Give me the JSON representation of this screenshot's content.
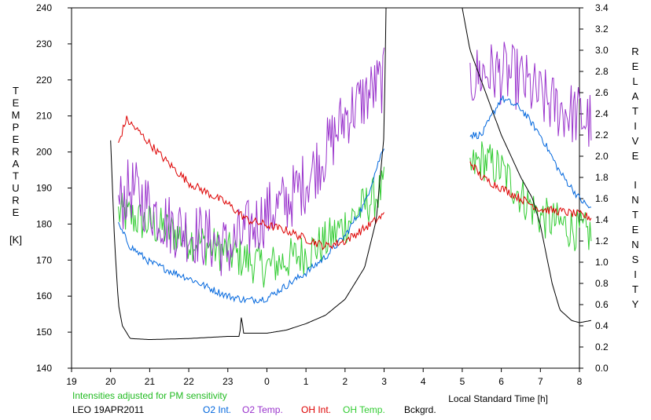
{
  "chart_data": {
    "type": "line",
    "title": "",
    "left_axis_label": "TEMPERATURE",
    "left_axis_unit": "[K]",
    "right_axis_label": "RELATIVE INTENSITY",
    "xlabel": "Local Standard Time [h]",
    "note": "Intensities adjusted for PM sensitivity",
    "station_date": "LEO 19APR2011",
    "xlim": [
      19,
      32
    ],
    "x_ticks": [
      19,
      20,
      21,
      22,
      23,
      24,
      25,
      26,
      27,
      28,
      29,
      30,
      31,
      32
    ],
    "x_tick_labels": [
      "19",
      "20",
      "21",
      "22",
      "23",
      "0",
      "1",
      "2",
      "3",
      "4",
      "5",
      "6",
      "7",
      "8"
    ],
    "ylim_left": [
      140,
      240
    ],
    "y_left_ticks": [
      "140",
      "150",
      "160",
      "170",
      "180",
      "190",
      "200",
      "210",
      "220",
      "230",
      "240"
    ],
    "ylim_right": [
      0.0,
      3.4
    ],
    "y_right_ticks": [
      "0.0",
      "0.2",
      "0.4",
      "0.6",
      "0.8",
      "1.0",
      "1.2",
      "1.4",
      "1.6",
      "1.8",
      "2.0",
      "2.2",
      "2.4",
      "2.6",
      "2.8",
      "3.0",
      "3.2",
      "3.4"
    ],
    "colors": {
      "o2_int": "#0066dd",
      "o2_temp": "#9933cc",
      "oh_int": "#dd0000",
      "oh_temp": "#33cc33",
      "bckgrd": "#000000",
      "note": "#22bb22"
    },
    "series": [
      {
        "name": "O2 Int.",
        "key": "o2_int",
        "axis": "right",
        "segments": [
          [
            [
              20.2,
              1.35
            ],
            [
              20.5,
              1.15
            ],
            [
              21.0,
              1.0
            ],
            [
              21.5,
              0.92
            ],
            [
              22.0,
              0.85
            ],
            [
              22.5,
              0.76
            ],
            [
              23.0,
              0.68
            ],
            [
              23.5,
              0.64
            ],
            [
              24.0,
              0.66
            ],
            [
              24.5,
              0.78
            ],
            [
              25.0,
              0.9
            ],
            [
              25.5,
              1.05
            ],
            [
              26.0,
              1.25
            ],
            [
              26.5,
              1.55
            ],
            [
              27.0,
              2.1
            ]
          ],
          [
            [
              29.2,
              2.2
            ],
            [
              29.5,
              2.2
            ],
            [
              30.0,
              2.55
            ],
            [
              30.5,
              2.45
            ],
            [
              31.0,
              2.2
            ],
            [
              31.5,
              1.85
            ],
            [
              32.0,
              1.6
            ],
            [
              32.3,
              1.5
            ]
          ]
        ]
      },
      {
        "name": "O2 Temp.",
        "key": "o2_temp",
        "axis": "left",
        "segments": [
          [
            [
              20.2,
              185
            ],
            [
              20.5,
              190
            ],
            [
              21.0,
              185
            ],
            [
              21.5,
              180
            ],
            [
              22.0,
              178
            ],
            [
              22.5,
              176
            ],
            [
              23.0,
              173
            ],
            [
              23.5,
              178
            ],
            [
              24.0,
              183
            ],
            [
              24.5,
              186
            ],
            [
              25.0,
              192
            ],
            [
              25.5,
              200
            ],
            [
              26.0,
              210
            ],
            [
              26.5,
              215
            ],
            [
              27.0,
              220
            ]
          ],
          [
            [
              29.2,
              220
            ],
            [
              29.5,
              222
            ],
            [
              30.0,
              222
            ],
            [
              30.5,
              220
            ],
            [
              31.0,
              215
            ],
            [
              31.5,
              212
            ],
            [
              32.0,
              210
            ],
            [
              32.3,
              208
            ]
          ]
        ]
      },
      {
        "name": "OH Int.",
        "key": "oh_int",
        "axis": "right",
        "segments": [
          [
            [
              20.2,
              2.12
            ],
            [
              20.4,
              2.35
            ],
            [
              20.8,
              2.2
            ],
            [
              21.3,
              2.0
            ],
            [
              22.0,
              1.75
            ],
            [
              22.5,
              1.65
            ],
            [
              23.0,
              1.55
            ],
            [
              23.5,
              1.4
            ],
            [
              24.0,
              1.35
            ],
            [
              24.5,
              1.3
            ],
            [
              25.0,
              1.22
            ],
            [
              25.5,
              1.15
            ],
            [
              26.0,
              1.2
            ],
            [
              26.5,
              1.32
            ],
            [
              27.0,
              1.45
            ]
          ],
          [
            [
              29.2,
              1.95
            ],
            [
              29.5,
              1.8
            ],
            [
              30.0,
              1.7
            ],
            [
              30.5,
              1.6
            ],
            [
              31.0,
              1.5
            ],
            [
              31.5,
              1.48
            ],
            [
              32.0,
              1.45
            ],
            [
              32.3,
              1.42
            ]
          ]
        ]
      },
      {
        "name": "OH Temp.",
        "key": "oh_temp",
        "axis": "left",
        "segments": [
          [
            [
              20.2,
              183
            ],
            [
              20.5,
              182
            ],
            [
              21.0,
              180
            ],
            [
              21.5,
              178
            ],
            [
              22.0,
              176
            ],
            [
              22.5,
              174
            ],
            [
              23.0,
              172
            ],
            [
              23.5,
              170
            ],
            [
              24.0,
              168
            ],
            [
              24.5,
              170
            ],
            [
              25.0,
              172
            ],
            [
              25.5,
              175
            ],
            [
              26.0,
              180
            ],
            [
              26.5,
              185
            ],
            [
              27.0,
              190
            ]
          ],
          [
            [
              29.2,
              195
            ],
            [
              29.5,
              198
            ],
            [
              30.0,
              195
            ],
            [
              30.5,
              188
            ],
            [
              31.0,
              182
            ],
            [
              31.5,
              180
            ],
            [
              32.0,
              178
            ],
            [
              32.3,
              177
            ]
          ]
        ]
      },
      {
        "name": "Bckgrd.",
        "key": "bckgrd",
        "axis": "right",
        "segments": [
          [
            [
              20.0,
              2.15
            ],
            [
              20.1,
              1.2
            ],
            [
              20.2,
              0.6
            ],
            [
              20.3,
              0.4
            ],
            [
              20.5,
              0.28
            ],
            [
              21.0,
              0.27
            ],
            [
              22.0,
              0.28
            ],
            [
              23.0,
              0.3
            ],
            [
              23.3,
              0.3
            ],
            [
              23.35,
              0.5
            ],
            [
              23.4,
              0.33
            ],
            [
              24.0,
              0.33
            ],
            [
              24.5,
              0.36
            ],
            [
              25.0,
              0.42
            ],
            [
              25.5,
              0.5
            ],
            [
              26.0,
              0.65
            ],
            [
              26.5,
              0.95
            ],
            [
              26.8,
              1.4
            ],
            [
              27.0,
              2.2
            ],
            [
              27.05,
              3.4
            ]
          ],
          [
            [
              29.0,
              3.4
            ],
            [
              29.2,
              3.0
            ],
            [
              29.5,
              2.7
            ],
            [
              30.0,
              2.2
            ],
            [
              30.5,
              1.8
            ],
            [
              30.8,
              1.6
            ],
            [
              31.0,
              1.35
            ],
            [
              31.3,
              0.8
            ],
            [
              31.5,
              0.55
            ],
            [
              31.8,
              0.45
            ],
            [
              32.0,
              0.43
            ],
            [
              32.3,
              0.45
            ]
          ]
        ]
      }
    ]
  }
}
